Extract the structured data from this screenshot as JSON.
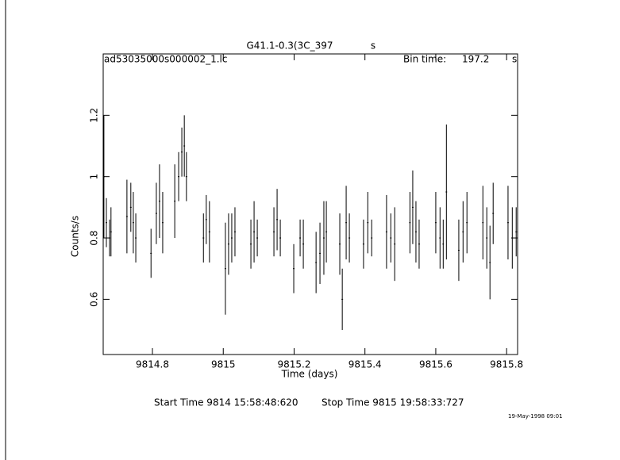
{
  "chart_data": {
    "type": "errorbar",
    "title": "G41.1-0.3(3C_397",
    "title_unit": "s",
    "file_name": "ad53035000s000002_1.lc",
    "bin_time_label": "Bin time:",
    "bin_time": "197.2",
    "bin_time_unit": "s",
    "x_label": "Time (days)",
    "y_label": "Counts/s",
    "start_time": "Start Time  9814 15:58:48:620",
    "stop_time": "Stop Time  9815 19:58:33:727",
    "date_stamp": "19-May-1998 09:01",
    "xlim": [
      9814.661,
      9815.831
    ],
    "ylim": [
      0.42,
      1.4
    ],
    "xticks": [
      9814.8,
      9815,
      9815.2,
      9815.4,
      9815.6,
      9815.8
    ],
    "yticks": [
      0.6,
      0.8,
      1,
      1.2
    ],
    "color": "#000000",
    "x": [
      9814.663,
      9814.67,
      9814.679,
      9814.683,
      9814.728,
      9814.739,
      9814.746,
      9814.753,
      9814.796,
      9814.811,
      9814.82,
      9814.829,
      9814.863,
      9814.874,
      9814.883,
      9814.89,
      9814.896,
      9814.944,
      9814.952,
      9814.961,
      9815.006,
      9815.015,
      9815.024,
      9815.033,
      9815.078,
      9815.087,
      9815.096,
      9815.143,
      9815.152,
      9815.161,
      9815.199,
      9815.217,
      9815.226,
      9815.262,
      9815.273,
      9815.284,
      9815.291,
      9815.329,
      9815.336,
      9815.347,
      9815.356,
      9815.396,
      9815.408,
      9815.419,
      9815.461,
      9815.473,
      9815.484,
      9815.527,
      9815.535,
      9815.544,
      9815.553,
      9815.6,
      9815.612,
      9815.621,
      9815.63,
      9815.665,
      9815.677,
      9815.688,
      9815.733,
      9815.744,
      9815.753,
      9815.762,
      9815.804,
      9815.816,
      9815.827
    ],
    "values": [
      1.0,
      0.85,
      0.8,
      0.82,
      0.87,
      0.9,
      0.85,
      0.8,
      0.75,
      0.88,
      0.92,
      0.85,
      0.92,
      1.0,
      1.08,
      1.1,
      1.0,
      0.8,
      0.86,
      0.82,
      0.7,
      0.78,
      0.8,
      0.82,
      0.78,
      0.82,
      0.8,
      0.82,
      0.86,
      0.8,
      0.7,
      0.8,
      0.78,
      0.72,
      0.75,
      0.8,
      0.82,
      0.78,
      0.6,
      0.85,
      0.8,
      0.78,
      0.85,
      0.8,
      0.82,
      0.8,
      0.78,
      0.85,
      0.9,
      0.82,
      0.78,
      0.85,
      0.8,
      0.78,
      0.95,
      0.76,
      0.82,
      0.85,
      0.85,
      0.8,
      0.72,
      0.88,
      0.85,
      0.8,
      0.82
    ],
    "errors": [
      0.2,
      0.08,
      0.06,
      0.08,
      0.12,
      0.08,
      0.1,
      0.08,
      0.08,
      0.1,
      0.12,
      0.1,
      0.12,
      0.08,
      0.08,
      0.1,
      0.08,
      0.08,
      0.08,
      0.1,
      0.15,
      0.1,
      0.08,
      0.08,
      0.08,
      0.1,
      0.06,
      0.08,
      0.1,
      0.06,
      0.08,
      0.06,
      0.08,
      0.1,
      0.1,
      0.12,
      0.1,
      0.1,
      0.1,
      0.12,
      0.08,
      0.08,
      0.1,
      0.06,
      0.12,
      0.08,
      0.12,
      0.1,
      0.12,
      0.1,
      0.08,
      0.1,
      0.1,
      0.08,
      0.22,
      0.1,
      0.1,
      0.1,
      0.12,
      0.1,
      0.12,
      0.1,
      0.12,
      0.1,
      0.08
    ]
  }
}
